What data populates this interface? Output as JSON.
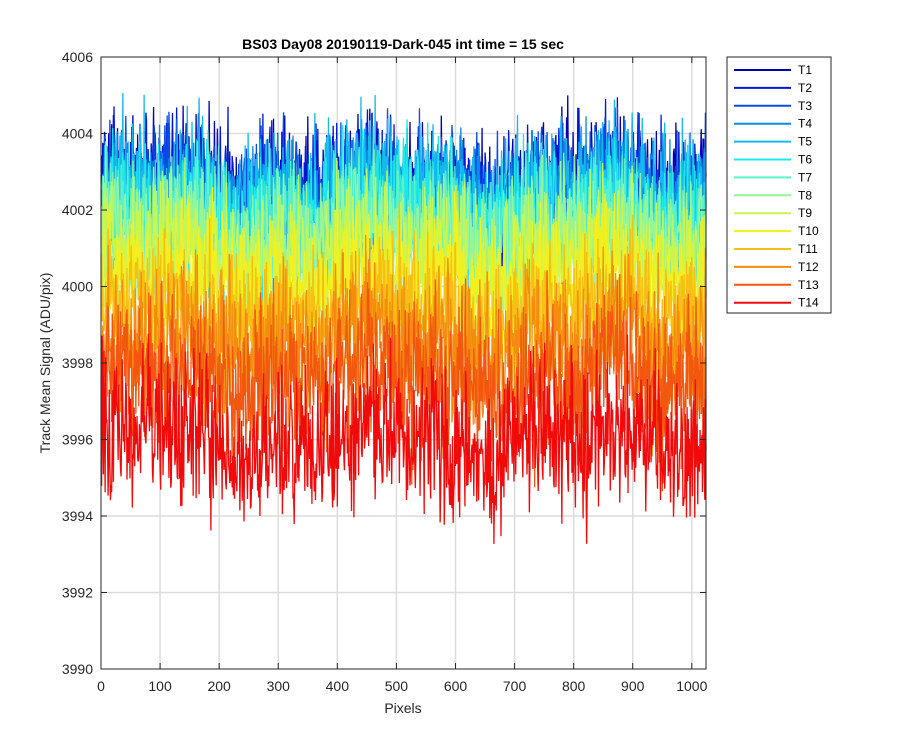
{
  "chart_data": {
    "type": "line",
    "title": "BS03 Day08 20190119-Dark-045 int time = 15 sec",
    "xlabel": "Pixels",
    "ylabel": "Track Mean Signal (ADU/pix)",
    "xlim": [
      0,
      1024
    ],
    "ylim": [
      3990,
      4006
    ],
    "xticks": [
      0,
      100,
      200,
      300,
      400,
      500,
      600,
      700,
      800,
      900,
      1000
    ],
    "yticks": [
      3990,
      3992,
      3994,
      3996,
      3998,
      4000,
      4002,
      4004,
      4006
    ],
    "grid": true,
    "legend_position": "outside-top-right",
    "n_points": 1024,
    "series": [
      {
        "name": "T1",
        "color": "#0000b3",
        "mean": 4002.6,
        "noise": 0.85
      },
      {
        "name": "T2",
        "color": "#0018d6",
        "mean": 4002.5,
        "noise": 0.85
      },
      {
        "name": "T3",
        "color": "#0a4ce8",
        "mean": 4002.4,
        "noise": 0.85
      },
      {
        "name": "T4",
        "color": "#0f88e6",
        "mean": 4002.2,
        "noise": 0.9
      },
      {
        "name": "T5",
        "color": "#16b8f0",
        "mean": 4002.3,
        "noise": 0.95
      },
      {
        "name": "T6",
        "color": "#1ee8e8",
        "mean": 4001.9,
        "noise": 0.9
      },
      {
        "name": "T7",
        "color": "#5ef0c8",
        "mean": 4001.5,
        "noise": 0.9
      },
      {
        "name": "T8",
        "color": "#96f598",
        "mean": 4001.2,
        "noise": 0.9
      },
      {
        "name": "T9",
        "color": "#c8f550",
        "mean": 4000.8,
        "noise": 0.9
      },
      {
        "name": "T10",
        "color": "#f2f01e",
        "mean": 4000.2,
        "noise": 0.9
      },
      {
        "name": "T11",
        "color": "#f7be14",
        "mean": 3999.3,
        "noise": 0.95
      },
      {
        "name": "T12",
        "color": "#f58c0f",
        "mean": 3998.5,
        "noise": 1.0
      },
      {
        "name": "T13",
        "color": "#f2560f",
        "mean": 3997.6,
        "noise": 1.0
      },
      {
        "name": "T14",
        "color": "#f00a0a",
        "mean": 3996.0,
        "noise": 1.0
      }
    ]
  }
}
